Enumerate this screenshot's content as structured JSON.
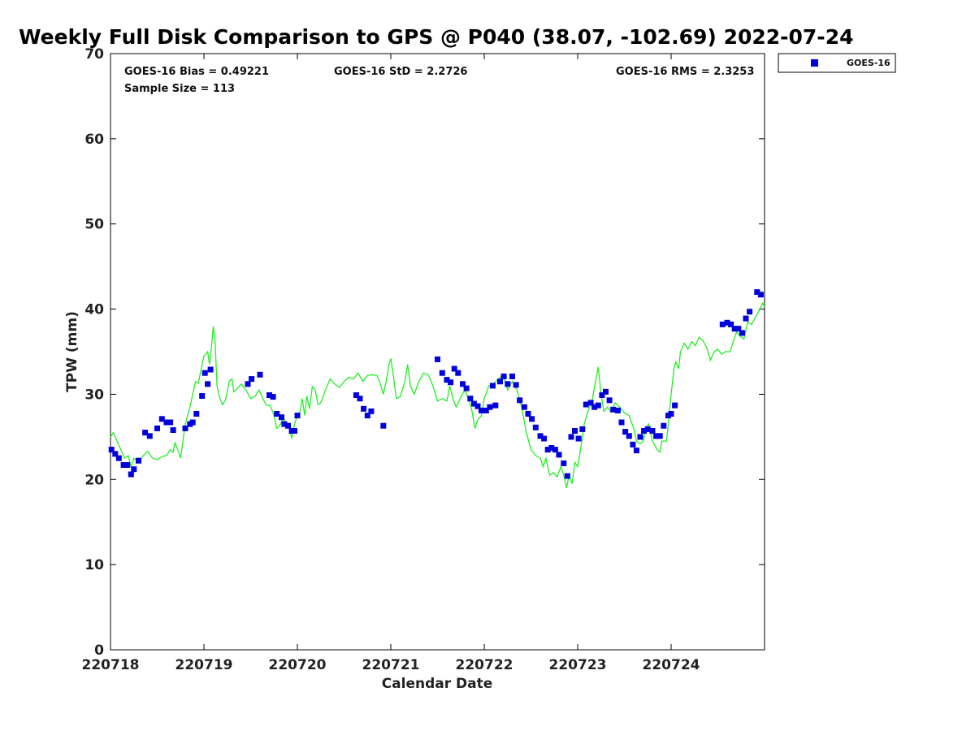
{
  "chart_data": {
    "type": "scatter",
    "title": "Weekly Full Disk Comparison to GPS @ P040 (38.07, -102.69) 2022-07-24",
    "xlabel": "Calendar Date",
    "ylabel": "TPW (mm)",
    "xlim": [
      0,
      7
    ],
    "ylim": [
      0,
      70
    ],
    "yticks": [
      0,
      10,
      20,
      30,
      40,
      50,
      60,
      70
    ],
    "xticks": [
      {
        "value": 0,
        "label": "220718"
      },
      {
        "value": 1,
        "label": "220719"
      },
      {
        "value": 2,
        "label": "220720"
      },
      {
        "value": 3,
        "label": "220721"
      },
      {
        "value": 4,
        "label": "220722"
      },
      {
        "value": 5,
        "label": "220723"
      },
      {
        "value": 6,
        "label": "220724"
      }
    ],
    "stats": {
      "bias": "GOES-16 Bias = 0.49221",
      "std": "GOES-16 StD = 2.2726",
      "rms": "GOES-16 RMS = 2.3253",
      "sample": "Sample Size = 113"
    },
    "legend": {
      "position": "top-right",
      "label": "GOES-16"
    },
    "series": [
      {
        "name": "GOES-16",
        "kind": "scatter",
        "color": "#0000dd",
        "points": [
          [
            0.01,
            23.5
          ],
          [
            0.05,
            23
          ],
          [
            0.09,
            22.5
          ],
          [
            0.14,
            21.7
          ],
          [
            0.18,
            21.7
          ],
          [
            0.22,
            20.6
          ],
          [
            0.25,
            21.2
          ],
          [
            0.3,
            22.2
          ],
          [
            0.37,
            25.5
          ],
          [
            0.42,
            25.1
          ],
          [
            0.5,
            26
          ],
          [
            0.55,
            27.1
          ],
          [
            0.6,
            26.7
          ],
          [
            0.64,
            26.7
          ],
          [
            0.67,
            25.8
          ],
          [
            0.8,
            26
          ],
          [
            0.85,
            26.5
          ],
          [
            0.88,
            26.7
          ],
          [
            0.92,
            27.7
          ],
          [
            0.98,
            29.8
          ],
          [
            1.01,
            32.5
          ],
          [
            1.04,
            31.2
          ],
          [
            1.07,
            32.9
          ],
          [
            1.47,
            31.2
          ],
          [
            1.51,
            31.8
          ],
          [
            1.6,
            32.3
          ],
          [
            1.7,
            29.9
          ],
          [
            1.74,
            29.7
          ],
          [
            1.78,
            27.7
          ],
          [
            1.83,
            27.3
          ],
          [
            1.86,
            26.5
          ],
          [
            1.9,
            26.3
          ],
          [
            1.94,
            25.7
          ],
          [
            1.97,
            25.7
          ],
          [
            2.0,
            27.5
          ],
          [
            2.63,
            29.9
          ],
          [
            2.67,
            29.5
          ],
          [
            2.71,
            28.3
          ],
          [
            2.75,
            27.5
          ],
          [
            2.79,
            28
          ],
          [
            2.92,
            26.3
          ],
          [
            3.5,
            34.1
          ],
          [
            3.55,
            32.5
          ],
          [
            3.6,
            31.7
          ],
          [
            3.64,
            31.4
          ],
          [
            3.68,
            33
          ],
          [
            3.72,
            32.5
          ],
          [
            3.77,
            31.2
          ],
          [
            3.81,
            30.7
          ],
          [
            3.85,
            29.5
          ],
          [
            3.89,
            28.9
          ],
          [
            3.93,
            28.6
          ],
          [
            3.97,
            28.1
          ],
          [
            4.02,
            28.1
          ],
          [
            4.06,
            28.5
          ],
          [
            4.09,
            31
          ],
          [
            4.12,
            28.7
          ],
          [
            4.17,
            31.5
          ],
          [
            4.21,
            32.1
          ],
          [
            4.25,
            31.2
          ],
          [
            4.3,
            32.1
          ],
          [
            4.34,
            31.1
          ],
          [
            4.38,
            29.3
          ],
          [
            4.43,
            28.5
          ],
          [
            4.47,
            27.7
          ],
          [
            4.51,
            27.1
          ],
          [
            4.55,
            26.1
          ],
          [
            4.6,
            25.1
          ],
          [
            4.64,
            24.8
          ],
          [
            4.68,
            23.5
          ],
          [
            4.72,
            23.7
          ],
          [
            4.76,
            23.5
          ],
          [
            4.8,
            22.9
          ],
          [
            4.85,
            21.9
          ],
          [
            4.89,
            20.4
          ],
          [
            4.93,
            25
          ],
          [
            4.97,
            25.7
          ],
          [
            5.01,
            24.8
          ],
          [
            5.05,
            25.9
          ],
          [
            5.09,
            28.8
          ],
          [
            5.14,
            29
          ],
          [
            5.18,
            28.5
          ],
          [
            5.22,
            28.7
          ],
          [
            5.26,
            29.9
          ],
          [
            5.3,
            30.3
          ],
          [
            5.34,
            29.3
          ],
          [
            5.38,
            28.2
          ],
          [
            5.43,
            28.1
          ],
          [
            5.47,
            26.7
          ],
          [
            5.51,
            25.6
          ],
          [
            5.55,
            25.1
          ],
          [
            5.59,
            24.1
          ],
          [
            5.63,
            23.4
          ],
          [
            5.67,
            25
          ],
          [
            5.71,
            25.7
          ],
          [
            5.75,
            25.9
          ],
          [
            5.8,
            25.7
          ],
          [
            5.84,
            25.1
          ],
          [
            5.88,
            25.1
          ],
          [
            5.92,
            26.3
          ],
          [
            5.97,
            27.5
          ],
          [
            6.0,
            27.7
          ],
          [
            6.04,
            28.7
          ],
          [
            6.55,
            38.2
          ],
          [
            6.6,
            38.4
          ],
          [
            6.64,
            38.2
          ],
          [
            6.68,
            37.7
          ],
          [
            6.72,
            37.7
          ],
          [
            6.76,
            37.2
          ],
          [
            6.8,
            38.9
          ],
          [
            6.84,
            39.7
          ],
          [
            6.92,
            42
          ],
          [
            6.96,
            41.7
          ]
        ]
      },
      {
        "name": "",
        "kind": "line",
        "color": "#22ee22",
        "points": [
          [
            0,
            25
          ],
          [
            0.03,
            25.5
          ],
          [
            0.07,
            24.5
          ],
          [
            0.11,
            23.5
          ],
          [
            0.15,
            22.5
          ],
          [
            0.19,
            22.8
          ],
          [
            0.22,
            21.5
          ],
          [
            0.25,
            22.5
          ],
          [
            0.3,
            22
          ],
          [
            0.35,
            22.8
          ],
          [
            0.4,
            23.3
          ],
          [
            0.45,
            22.5
          ],
          [
            0.5,
            22.3
          ],
          [
            0.55,
            22.7
          ],
          [
            0.6,
            22.8
          ],
          [
            0.64,
            23.5
          ],
          [
            0.67,
            23.2
          ],
          [
            0.69,
            24.3
          ],
          [
            0.72,
            23.5
          ],
          [
            0.75,
            22.5
          ],
          [
            0.8,
            26.5
          ],
          [
            0.85,
            28.5
          ],
          [
            0.88,
            30
          ],
          [
            0.91,
            31.5
          ],
          [
            0.94,
            31.3
          ],
          [
            0.97,
            33
          ],
          [
            1.0,
            34.5
          ],
          [
            1.02,
            34.7
          ],
          [
            1.04,
            35
          ],
          [
            1.06,
            33.5
          ],
          [
            1.08,
            35.5
          ],
          [
            1.1,
            38
          ],
          [
            1.12,
            36
          ],
          [
            1.14,
            31
          ],
          [
            1.17,
            29.5
          ],
          [
            1.2,
            28.8
          ],
          [
            1.23,
            29.3
          ],
          [
            1.27,
            31.5
          ],
          [
            1.3,
            31.8
          ],
          [
            1.32,
            30.3
          ],
          [
            1.36,
            30.7
          ],
          [
            1.4,
            31.2
          ],
          [
            1.45,
            30.5
          ],
          [
            1.5,
            29.5
          ],
          [
            1.55,
            29.8
          ],
          [
            1.59,
            30.5
          ],
          [
            1.63,
            29.5
          ],
          [
            1.67,
            28.7
          ],
          [
            1.71,
            28.7
          ],
          [
            1.75,
            27.5
          ],
          [
            1.78,
            26
          ],
          [
            1.82,
            26.5
          ],
          [
            1.85,
            27.3
          ],
          [
            1.88,
            26.5
          ],
          [
            1.91,
            26.3
          ],
          [
            1.94,
            24.8
          ],
          [
            1.97,
            26.5
          ],
          [
            2.0,
            27.5
          ],
          [
            2.03,
            28
          ],
          [
            2.05,
            29.5
          ],
          [
            2.08,
            27.5
          ],
          [
            2.1,
            29.8
          ],
          [
            2.13,
            28.3
          ],
          [
            2.16,
            30.9
          ],
          [
            2.19,
            30.5
          ],
          [
            2.22,
            28.8
          ],
          [
            2.25,
            29
          ],
          [
            2.3,
            30.5
          ],
          [
            2.35,
            31.8
          ],
          [
            2.4,
            31.2
          ],
          [
            2.45,
            30.8
          ],
          [
            2.5,
            31.5
          ],
          [
            2.55,
            32
          ],
          [
            2.6,
            31.8
          ],
          [
            2.65,
            32.5
          ],
          [
            2.7,
            31.5
          ],
          [
            2.75,
            32.2
          ],
          [
            2.8,
            32.3
          ],
          [
            2.85,
            32.2
          ],
          [
            2.88,
            31.5
          ],
          [
            2.92,
            30
          ],
          [
            2.95,
            31.5
          ],
          [
            2.98,
            33.5
          ],
          [
            3.0,
            34.2
          ],
          [
            3.03,
            32
          ],
          [
            3.06,
            29.5
          ],
          [
            3.1,
            29.7
          ],
          [
            3.15,
            31.5
          ],
          [
            3.18,
            33.5
          ],
          [
            3.21,
            31
          ],
          [
            3.25,
            30
          ],
          [
            3.3,
            31.5
          ],
          [
            3.35,
            32.5
          ],
          [
            3.4,
            32.3
          ],
          [
            3.45,
            31
          ],
          [
            3.5,
            29.2
          ],
          [
            3.55,
            29.5
          ],
          [
            3.6,
            29.2
          ],
          [
            3.63,
            31
          ],
          [
            3.67,
            29.3
          ],
          [
            3.7,
            28.5
          ],
          [
            3.75,
            29.7
          ],
          [
            3.79,
            30.5
          ],
          [
            3.83,
            29.5
          ],
          [
            3.87,
            28
          ],
          [
            3.9,
            26
          ],
          [
            3.93,
            27
          ],
          [
            3.97,
            27.5
          ],
          [
            4.0,
            29.5
          ],
          [
            4.05,
            31
          ],
          [
            4.1,
            31.2
          ],
          [
            4.15,
            31.8
          ],
          [
            4.2,
            32.3
          ],
          [
            4.25,
            30.5
          ],
          [
            4.3,
            31.5
          ],
          [
            4.35,
            30.5
          ],
          [
            4.4,
            28.5
          ],
          [
            4.45,
            25.5
          ],
          [
            4.5,
            23.5
          ],
          [
            4.55,
            22.8
          ],
          [
            4.6,
            22.5
          ],
          [
            4.63,
            21.5
          ],
          [
            4.66,
            22.5
          ],
          [
            4.7,
            20.5
          ],
          [
            4.74,
            20.8
          ],
          [
            4.78,
            20.3
          ],
          [
            4.82,
            21.5
          ],
          [
            4.85,
            20.5
          ],
          [
            4.88,
            19
          ],
          [
            4.91,
            20.5
          ],
          [
            4.94,
            19.5
          ],
          [
            4.97,
            22
          ],
          [
            5.0,
            21.5
          ],
          [
            5.03,
            23.5
          ],
          [
            5.07,
            26.5
          ],
          [
            5.11,
            28
          ],
          [
            5.15,
            29
          ],
          [
            5.19,
            31.5
          ],
          [
            5.22,
            33.2
          ],
          [
            5.25,
            30
          ],
          [
            5.28,
            28
          ],
          [
            5.32,
            28.5
          ],
          [
            5.35,
            28
          ],
          [
            5.4,
            29
          ],
          [
            5.45,
            28.5
          ],
          [
            5.5,
            27.8
          ],
          [
            5.55,
            27.5
          ],
          [
            5.6,
            26
          ],
          [
            5.63,
            24.5
          ],
          [
            5.67,
            24.2
          ],
          [
            5.7,
            24.5
          ],
          [
            5.73,
            26
          ],
          [
            5.76,
            26.5
          ],
          [
            5.8,
            24.5
          ],
          [
            5.85,
            23.5
          ],
          [
            5.88,
            23.2
          ],
          [
            5.9,
            24.5
          ],
          [
            5.95,
            24.5
          ],
          [
            5.97,
            26.5
          ],
          [
            6.0,
            30
          ],
          [
            6.03,
            33
          ],
          [
            6.05,
            33.8
          ],
          [
            6.08,
            33
          ],
          [
            6.1,
            35
          ],
          [
            6.14,
            36
          ],
          [
            6.18,
            35.3
          ],
          [
            6.22,
            36.2
          ],
          [
            6.26,
            35.7
          ],
          [
            6.3,
            36.7
          ],
          [
            6.34,
            36.3
          ],
          [
            6.38,
            35.5
          ],
          [
            6.42,
            34
          ],
          [
            6.46,
            35
          ],
          [
            6.5,
            35.3
          ],
          [
            6.54,
            34.7
          ],
          [
            6.58,
            35
          ],
          [
            6.63,
            35
          ],
          [
            6.66,
            36
          ],
          [
            6.7,
            37.3
          ],
          [
            6.74,
            36.8
          ],
          [
            6.78,
            36.5
          ],
          [
            6.82,
            38.5
          ],
          [
            6.86,
            38.2
          ],
          [
            6.9,
            39
          ],
          [
            6.94,
            39.8
          ],
          [
            6.98,
            40.7
          ],
          [
            7.0,
            40.3
          ]
        ]
      }
    ]
  }
}
